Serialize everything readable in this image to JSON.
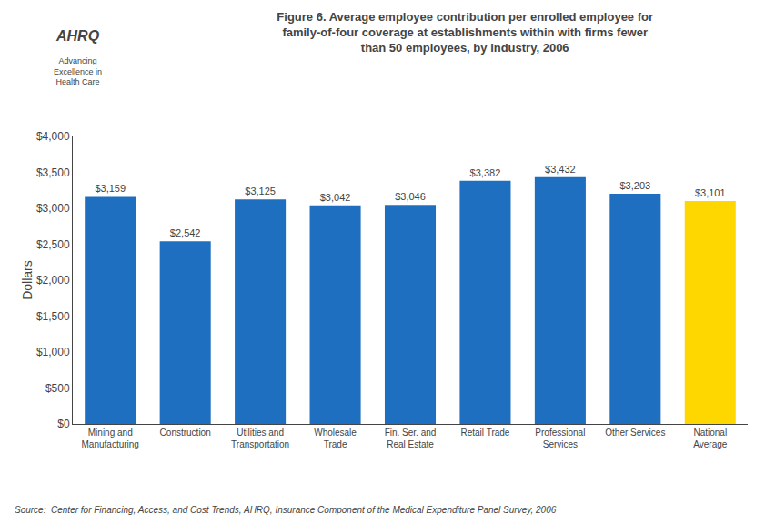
{
  "chart_data": {
    "type": "bar",
    "title": "Figure 6. Average employee contribution per enrolled employee for\nfamily-of-four coverage at establishments within with firms fewer\nthan 50 employees, by industry, 2006",
    "ylabel": "Dollars",
    "categories": [
      "Mining and\nManufacturing",
      "Construction",
      "Utilities and\nTransportation",
      "Wholesale\nTrade",
      "Fin. Ser. and\nReal Estate",
      "Retail Trade",
      "Professional\nServices",
      "Other Services",
      "National\nAverage"
    ],
    "values": [
      3159,
      2542,
      3125,
      3042,
      3046,
      3382,
      3432,
      3203,
      3101
    ],
    "value_labels": [
      "$3,159",
      "$2,542",
      "$3,125",
      "$3,042",
      "$3,046",
      "$3,382",
      "$3,432",
      "$3,203",
      "$3,101"
    ],
    "data_labels": true,
    "colors": [
      "#1E6FBF",
      "#1E6FBF",
      "#1E6FBF",
      "#1E6FBF",
      "#1E6FBF",
      "#1E6FBF",
      "#1E6FBF",
      "#1E6FBF",
      "#FFD700"
    ],
    "ylim": [
      0,
      4000
    ],
    "yticks": [
      {
        "value": 0,
        "label": "$0"
      },
      {
        "value": 500,
        "label": "$500"
      },
      {
        "value": 1000,
        "label": "$1,000"
      },
      {
        "value": 1500,
        "label": "$1,500"
      },
      {
        "value": 2000,
        "label": "$2,000"
      },
      {
        "value": 2500,
        "label": "$2,500"
      },
      {
        "value": 3000,
        "label": "$3,000"
      },
      {
        "value": 3500,
        "label": "$3,500"
      },
      {
        "value": 4000,
        "label": "$4,000"
      }
    ],
    "grid": false,
    "annotations": [
      "AHRQ",
      "Advancing\nExcellence in\nHealth Care",
      "Source:  Center for Financing, Access, and Cost Trends, AHRQ, Insurance Component of the Medical Expenditure Panel Survey, 2006"
    ]
  }
}
